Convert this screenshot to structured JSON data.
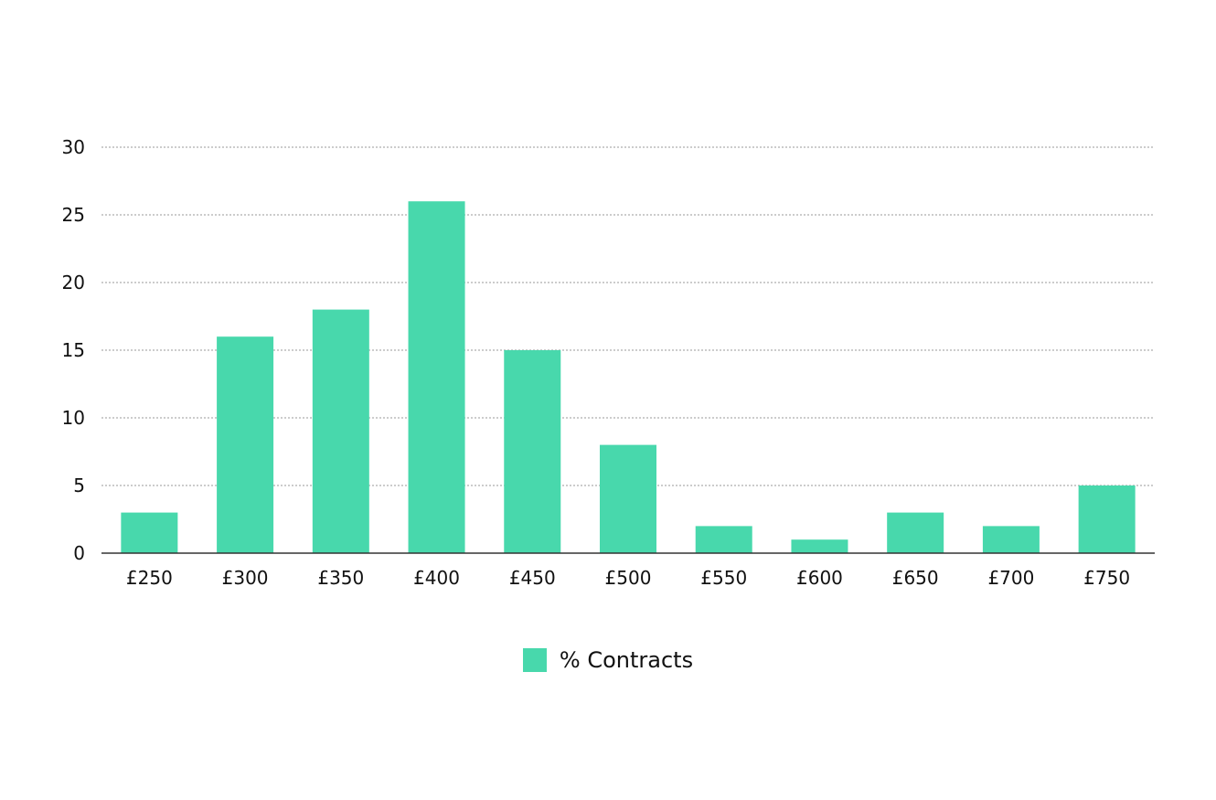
{
  "chart_data": {
    "type": "bar",
    "categories": [
      "£250",
      "£300",
      "£350",
      "£400",
      "£450",
      "£500",
      "£550",
      "£600",
      "£650",
      "£700",
      "£750"
    ],
    "series": [
      {
        "name": "% Contracts",
        "values": [
          3,
          16,
          18,
          26,
          15,
          8,
          2,
          1,
          3,
          2,
          5
        ]
      }
    ],
    "y_ticks": [
      0,
      5,
      10,
      15,
      20,
      25,
      30
    ],
    "ylim": [
      0,
      30
    ],
    "title": "",
    "xlabel": "",
    "ylabel": "",
    "grid": "horizontal dotted",
    "legend_position": "bottom-center",
    "colors": {
      "bar": "#48d8ac",
      "grid": "#9a9a9a",
      "axis": "#333333"
    }
  }
}
